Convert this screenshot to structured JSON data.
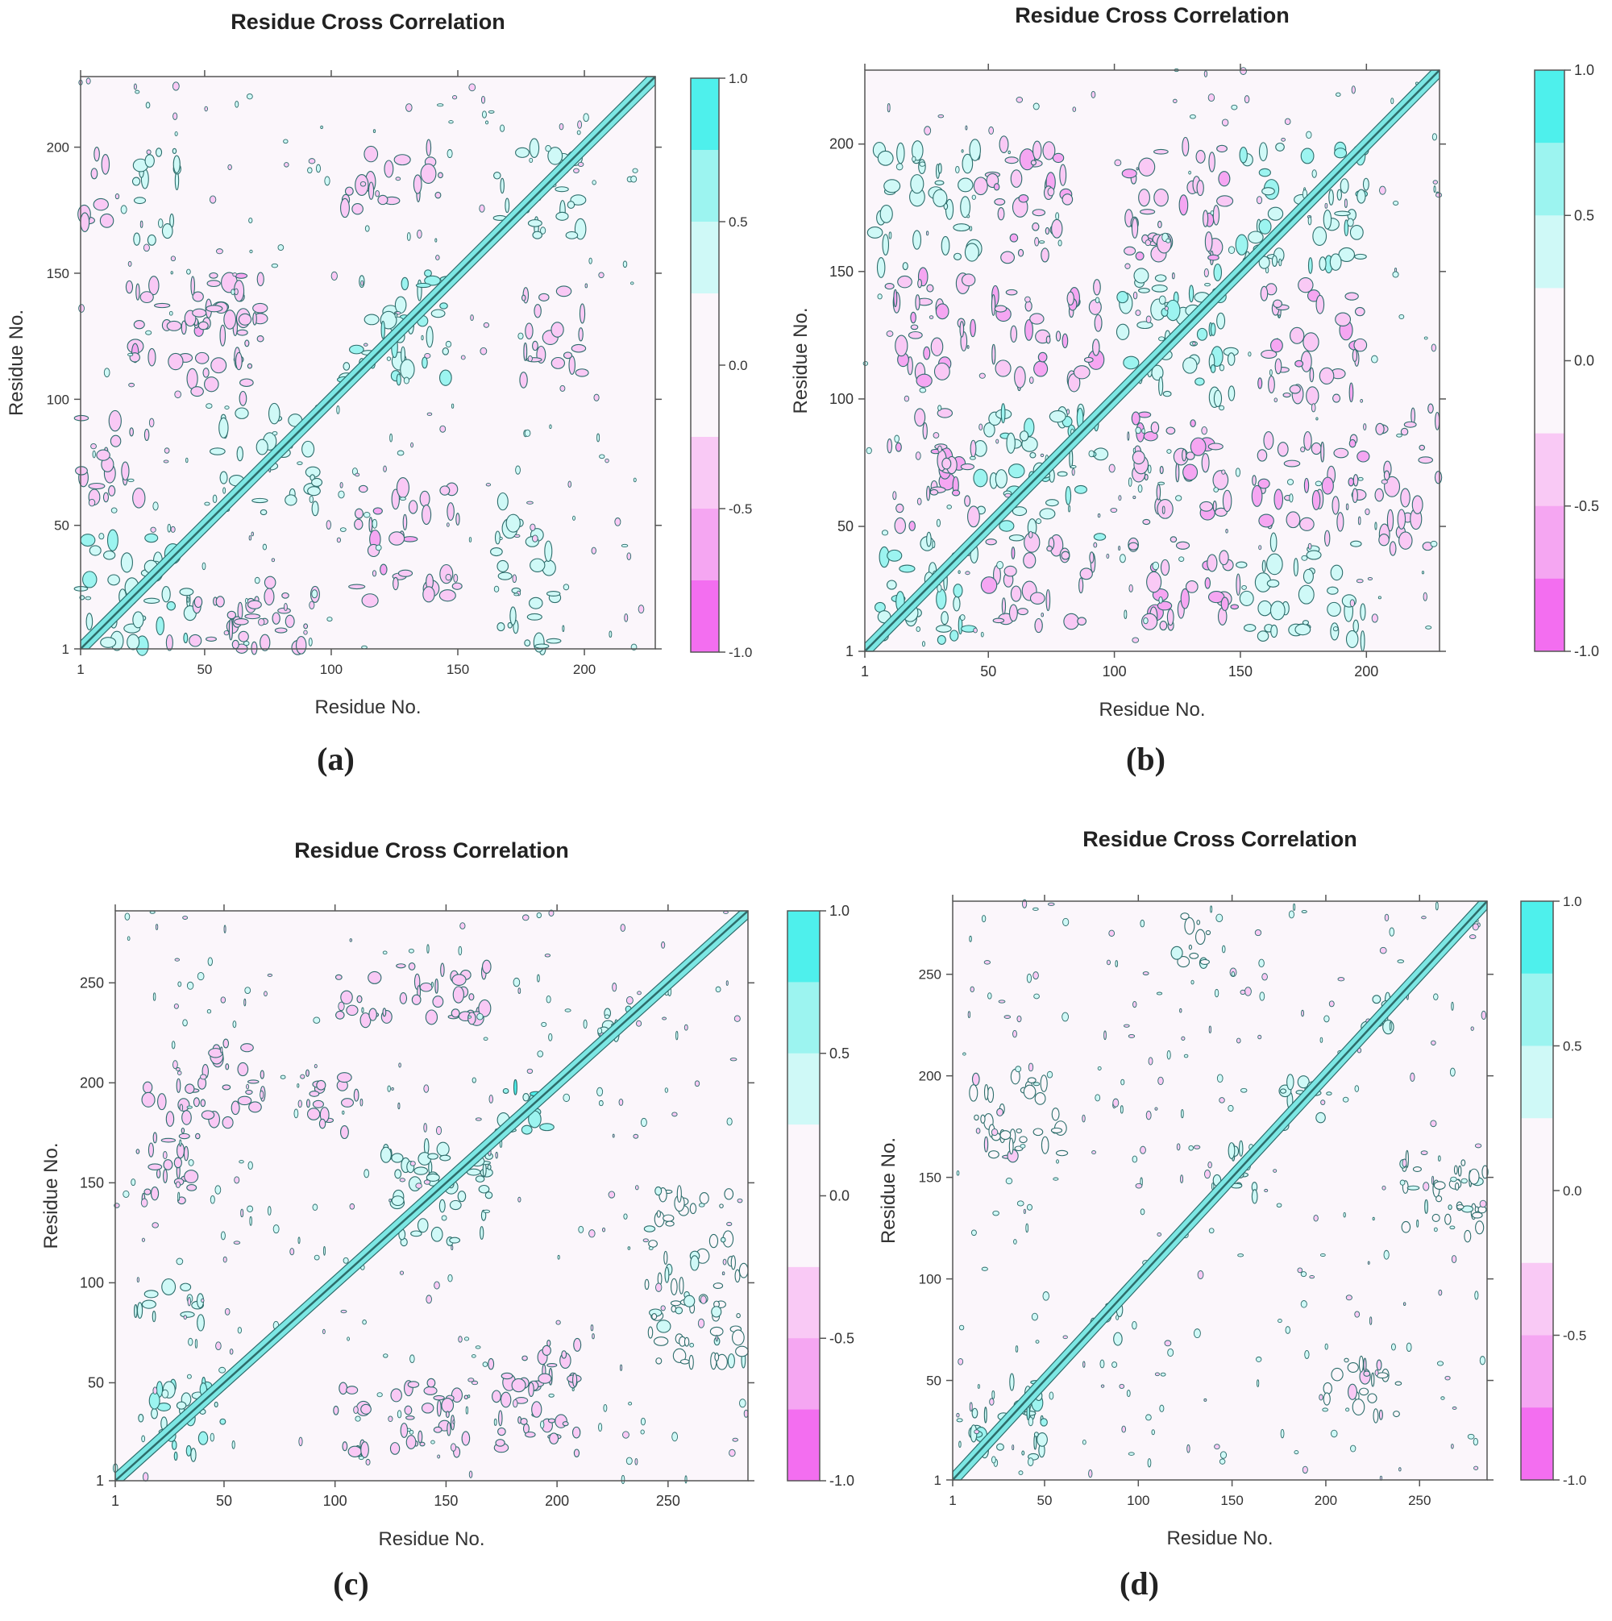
{
  "panels": [
    {
      "id": "a",
      "label": "(a)",
      "title": "Residue Cross Correlation",
      "xlabel": "Residue No.",
      "ylabel": "Residue No.",
      "n_residues": 228,
      "x_ticks": [
        "1",
        "50",
        "100",
        "150",
        "200"
      ],
      "y_ticks": [
        "1",
        "50",
        "100",
        "150",
        "200"
      ],
      "colorbar_ticks": [
        "1.0",
        "0.5",
        "0.0",
        "-0.5",
        "-1.0"
      ]
    },
    {
      "id": "b",
      "label": "(b)",
      "title": "Residue Cross Correlation",
      "xlabel": "Residue No.",
      "ylabel": "Residue No.",
      "n_residues": 229,
      "x_ticks": [
        "1",
        "50",
        "100",
        "150",
        "200"
      ],
      "y_ticks": [
        "1",
        "50",
        "100",
        "150",
        "200"
      ],
      "colorbar_ticks": [
        "1.0",
        "0.5",
        "0.0",
        "-0.5",
        "-1.0"
      ]
    },
    {
      "id": "c",
      "label": "(c)",
      "title": "Residue Cross Correlation",
      "xlabel": "Residue No.",
      "ylabel": "Residue No.",
      "n_residues": 286,
      "x_ticks": [
        "1",
        "50",
        "100",
        "150",
        "200",
        "250"
      ],
      "y_ticks": [
        "1",
        "50",
        "100",
        "150",
        "200",
        "250"
      ],
      "colorbar_ticks": [
        "1.0",
        "0.5",
        "0.0",
        "-0.5",
        "-1.0"
      ]
    },
    {
      "id": "d",
      "label": "(d)",
      "title": "Residue Cross Correlation",
      "xlabel": "Residue No.",
      "ylabel": "Residue No.",
      "n_residues": 286,
      "x_ticks": [
        "1",
        "50",
        "100",
        "150",
        "200",
        "250"
      ],
      "y_ticks": [
        "1",
        "50",
        "100",
        "150",
        "200",
        "250"
      ],
      "colorbar_ticks": [
        "1.0",
        "0.5",
        "0.0",
        "-0.5",
        "-1.0"
      ]
    }
  ],
  "chart_data": [
    {
      "type": "heatmap",
      "title": "Residue Cross Correlation",
      "xlabel": "Residue No.",
      "ylabel": "Residue No.",
      "xlim": [
        1,
        228
      ],
      "ylim": [
        1,
        228
      ],
      "colorbar_range": [
        -1.0,
        1.0
      ],
      "positive_color": "#4ef0ec",
      "negative_color": "#f36ef0",
      "diagonal": 1.0,
      "blocks": [
        {
          "x": [
            1,
            45
          ],
          "y": [
            1,
            45
          ],
          "value": 0.45
        },
        {
          "x": [
            55,
            95
          ],
          "y": [
            55,
            95
          ],
          "value": 0.35
        },
        {
          "x": [
            105,
            150
          ],
          "y": [
            105,
            150
          ],
          "value": 0.45
        },
        {
          "x": [
            165,
            200
          ],
          "y": [
            165,
            200
          ],
          "value": 0.35
        },
        {
          "x": [
            110,
            150
          ],
          "y": [
            20,
            65
          ],
          "value": -0.4
        },
        {
          "x": [
            20,
            65
          ],
          "y": [
            110,
            150
          ],
          "value": -0.4
        },
        {
          "x": [
            105,
            150
          ],
          "y": [
            175,
            200
          ],
          "value": -0.35
        },
        {
          "x": [
            175,
            200
          ],
          "y": [
            105,
            150
          ],
          "value": -0.35
        },
        {
          "x": [
            1,
            30
          ],
          "y": [
            60,
            95
          ],
          "value": -0.35
        },
        {
          "x": [
            60,
            95
          ],
          "y": [
            1,
            30
          ],
          "value": -0.35
        },
        {
          "x": [
            35,
            80
          ],
          "y": [
            1,
            20
          ],
          "value": -0.3
        },
        {
          "x": [
            45,
            75
          ],
          "y": [
            100,
            150
          ],
          "value": -0.25
        },
        {
          "x": [
            1,
            15
          ],
          "y": [
            170,
            200
          ],
          "value": -0.3
        },
        {
          "x": [
            165,
            190
          ],
          "y": [
            1,
            60
          ],
          "value": 0.25
        },
        {
          "x": [
            20,
            40
          ],
          "y": [
            160,
            200
          ],
          "value": 0.25
        }
      ]
    },
    {
      "type": "heatmap",
      "title": "Residue Cross Correlation",
      "xlabel": "Residue No.",
      "ylabel": "Residue No.",
      "xlim": [
        1,
        229
      ],
      "ylim": [
        1,
        229
      ],
      "colorbar_range": [
        -1.0,
        1.0
      ],
      "positive_color": "#4ef0ec",
      "negative_color": "#f36ef0",
      "diagonal": 1.0,
      "blocks": [
        {
          "x": [
            5,
            45
          ],
          "y": [
            5,
            45
          ],
          "value": 0.5
        },
        {
          "x": [
            45,
            95
          ],
          "y": [
            45,
            95
          ],
          "value": 0.45
        },
        {
          "x": [
            100,
            150
          ],
          "y": [
            100,
            150
          ],
          "value": 0.45
        },
        {
          "x": [
            150,
            200
          ],
          "y": [
            150,
            200
          ],
          "value": 0.45
        },
        {
          "x": [
            10,
            45
          ],
          "y": [
            105,
            150
          ],
          "value": -0.45
        },
        {
          "x": [
            105,
            150
          ],
          "y": [
            10,
            45
          ],
          "value": -0.45
        },
        {
          "x": [
            45,
            85
          ],
          "y": [
            155,
            200
          ],
          "value": -0.45
        },
        {
          "x": [
            155,
            200
          ],
          "y": [
            45,
            85
          ],
          "value": -0.45
        },
        {
          "x": [
            10,
            45
          ],
          "y": [
            50,
            95
          ],
          "value": -0.4
        },
        {
          "x": [
            50,
            95
          ],
          "y": [
            10,
            45
          ],
          "value": -0.4
        },
        {
          "x": [
            105,
            145
          ],
          "y": [
            50,
            95
          ],
          "value": -0.4
        },
        {
          "x": [
            50,
            95
          ],
          "y": [
            105,
            145
          ],
          "value": -0.4
        },
        {
          "x": [
            155,
            200
          ],
          "y": [
            100,
            145
          ],
          "value": -0.4
        },
        {
          "x": [
            100,
            145
          ],
          "y": [
            155,
            200
          ],
          "value": -0.4
        },
        {
          "x": [
            150,
            200
          ],
          "y": [
            5,
            45
          ],
          "value": 0.35
        },
        {
          "x": [
            5,
            45
          ],
          "y": [
            150,
            200
          ],
          "value": 0.35
        },
        {
          "x": [
            205,
            229
          ],
          "y": [
            40,
            100
          ],
          "value": -0.3
        }
      ]
    },
    {
      "type": "heatmap",
      "title": "Residue Cross Correlation",
      "xlabel": "Residue No.",
      "ylabel": "Residue No.",
      "xlim": [
        1,
        286
      ],
      "ylim": [
        1,
        286
      ],
      "colorbar_range": [
        -1.0,
        1.0
      ],
      "positive_color": "#4ef0ec",
      "negative_color": "#f36ef0",
      "diagonal": 1.0,
      "blocks": [
        {
          "x": [
            10,
            50
          ],
          "y": [
            10,
            50
          ],
          "value": 0.55
        },
        {
          "x": [
            175,
            200
          ],
          "y": [
            175,
            200
          ],
          "value": 0.55
        },
        {
          "x": [
            220,
            240
          ],
          "y": [
            220,
            240
          ],
          "value": 0.5
        },
        {
          "x": [
            120,
            170
          ],
          "y": [
            120,
            170
          ],
          "value": 0.3
        },
        {
          "x": [
            170,
            210
          ],
          "y": [
            10,
            70
          ],
          "value": -0.35
        },
        {
          "x": [
            100,
            160
          ],
          "y": [
            15,
            50
          ],
          "value": -0.3
        },
        {
          "x": [
            10,
            40
          ],
          "y": [
            140,
            200
          ],
          "value": -0.3
        },
        {
          "x": [
            40,
            70
          ],
          "y": [
            180,
            220
          ],
          "value": -0.3
        },
        {
          "x": [
            80,
            110
          ],
          "y": [
            175,
            205
          ],
          "value": -0.3
        },
        {
          "x": [
            100,
            170
          ],
          "y": [
            230,
            260
          ],
          "value": -0.3
        },
        {
          "x": [
            240,
            286
          ],
          "y": [
            60,
            150
          ],
          "value": 0.2
        },
        {
          "x": [
            10,
            40
          ],
          "y": [
            80,
            100
          ],
          "value": 0.25
        }
      ]
    },
    {
      "type": "heatmap",
      "title": "Residue Cross Correlation",
      "xlabel": "Residue No.",
      "ylabel": "Residue No.",
      "xlim": [
        1,
        286
      ],
      "ylim": [
        1,
        286
      ],
      "colorbar_range": [
        -1.0,
        1.0
      ],
      "positive_color": "#4ef0ec",
      "negative_color": "#f36ef0",
      "diagonal": 1.0,
      "blocks": [
        {
          "x": [
            10,
            50
          ],
          "y": [
            10,
            50
          ],
          "value": 0.4
        },
        {
          "x": [
            175,
            200
          ],
          "y": [
            175,
            200
          ],
          "value": 0.35
        },
        {
          "x": [
            220,
            240
          ],
          "y": [
            220,
            240
          ],
          "value": 0.35
        },
        {
          "x": [
            70,
            90
          ],
          "y": [
            70,
            90
          ],
          "value": 0.3
        },
        {
          "x": [
            140,
            165
          ],
          "y": [
            140,
            165
          ],
          "value": 0.3
        },
        {
          "x": [
            200,
            240
          ],
          "y": [
            30,
            60
          ],
          "value": -0.2
        },
        {
          "x": [
            10,
            60
          ],
          "y": [
            160,
            200
          ],
          "value": -0.2
        },
        {
          "x": [
            240,
            286
          ],
          "y": [
            120,
            160
          ],
          "value": 0.2
        },
        {
          "x": [
            120,
            140
          ],
          "y": [
            250,
            280
          ],
          "value": 0.2
        }
      ]
    }
  ]
}
